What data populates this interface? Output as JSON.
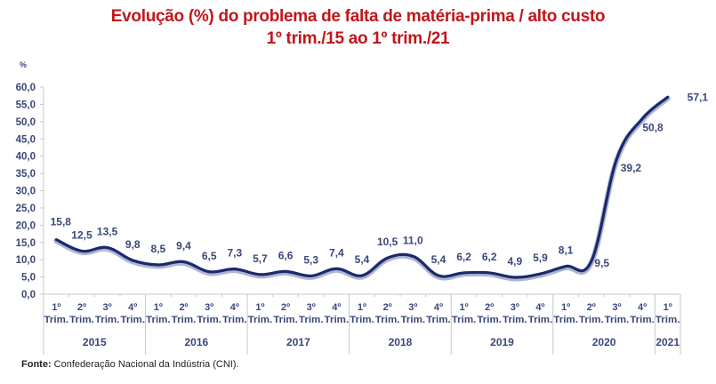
{
  "chart_data": {
    "type": "line",
    "title": "Evolução (%) do problema de falta de matéria-prima / alto custo",
    "subtitle": "1º trim./15 ao 1º trim./21",
    "ylabel": "%",
    "xlabel": "",
    "ylim": [
      0,
      60
    ],
    "yticks": [
      "0,0",
      "5,0",
      "10,0",
      "15,0",
      "20,0",
      "25,0",
      "30,0",
      "35,0",
      "40,0",
      "45,0",
      "50,0",
      "55,0",
      "60,0"
    ],
    "grid": false,
    "legend": "none",
    "categories": [
      "1º Trim. 2015",
      "2º Trim. 2015",
      "3º Trim. 2015",
      "4º Trim. 2015",
      "1º Trim. 2016",
      "2º Trim. 2016",
      "3º Trim. 2016",
      "4º Trim. 2016",
      "1º Trim. 2017",
      "2º Trim. 2017",
      "3º Trim. 2017",
      "4º Trim. 2017",
      "1º Trim. 2018",
      "2º Trim. 2018",
      "3º Trim. 2018",
      "4º Trim. 2018",
      "1º Trim. 2019",
      "2º Trim. 2019",
      "3º Trim. 2019",
      "4º Trim. 2019",
      "1º Trim. 2020",
      "2º Trim. 2020",
      "3º Trim. 2020",
      "4º Trim. 2020",
      "1º Trim. 2021"
    ],
    "quarter_labels": [
      "1º",
      "2º",
      "3º",
      "4º",
      "1º",
      "2º",
      "3º",
      "4º",
      "1º",
      "2º",
      "3º",
      "4º",
      "1º",
      "2º",
      "3º",
      "4º",
      "1º",
      "2º",
      "3º",
      "4º",
      "1º",
      "2º",
      "3º",
      "4º",
      "1º"
    ],
    "quarter_sublabel": "Trim.",
    "years": [
      {
        "label": "2015",
        "quarters": 4
      },
      {
        "label": "2016",
        "quarters": 4
      },
      {
        "label": "2017",
        "quarters": 4
      },
      {
        "label": "2018",
        "quarters": 4
      },
      {
        "label": "2019",
        "quarters": 4
      },
      {
        "label": "2020",
        "quarters": 4
      },
      {
        "label": "2021",
        "quarters": 1
      }
    ],
    "series": [
      {
        "name": "Falta de matéria-prima / alto custo",
        "color": "#1c2a6b",
        "values": [
          15.8,
          12.5,
          13.5,
          9.8,
          8.5,
          9.4,
          6.5,
          7.3,
          5.7,
          6.6,
          5.3,
          7.4,
          5.4,
          10.5,
          11.0,
          5.4,
          6.2,
          6.2,
          4.9,
          5.9,
          8.1,
          9.5,
          39.2,
          50.8,
          57.1
        ],
        "labels": [
          "15,8",
          "12,5",
          "13,5",
          "9,8",
          "8,5",
          "9,4",
          "6,5",
          "7,3",
          "5,7",
          "6,6",
          "5,3",
          "7,4",
          "5,4",
          "10,5",
          "11,0",
          "5,4",
          "6,2",
          "6,2",
          "4,9",
          "5,9",
          "8,1",
          "9,5",
          "39,2",
          "50,8",
          "57,1"
        ]
      }
    ],
    "source_prefix": "Fonte:",
    "source_text": " Confederação Nacional da Indústria (CNI)."
  },
  "colors": {
    "title": "#c0161c",
    "line": "#1c2a6b",
    "line_shadow": "#9aa3c8",
    "axis": "#c8c8c8",
    "text": "#3a477a"
  }
}
